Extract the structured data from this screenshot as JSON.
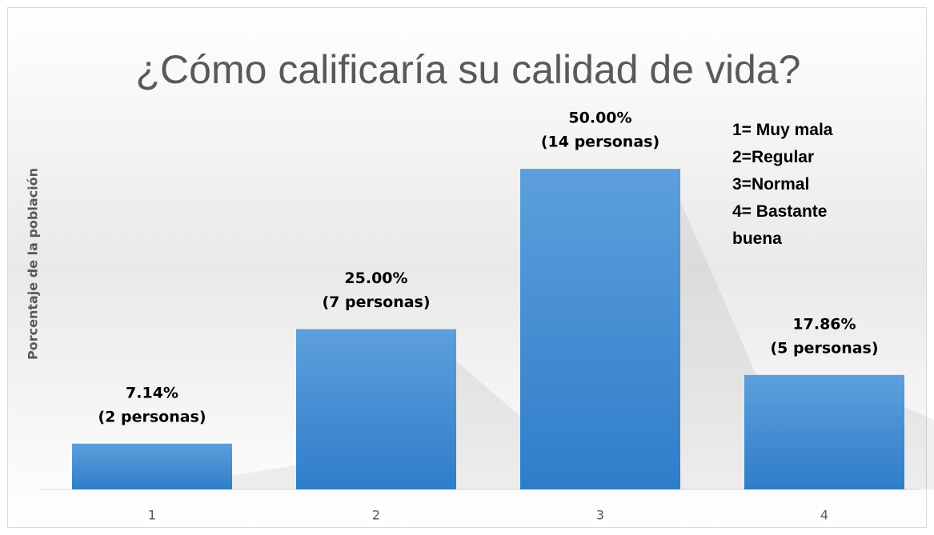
{
  "chart_data": {
    "type": "bar",
    "title": "¿Cómo calificaría su calidad de vida?",
    "y_label": "Porcentaje de la población",
    "categories": [
      "1",
      "2",
      "3",
      "4"
    ],
    "values": [
      7.14,
      25.0,
      50.0,
      17.86
    ],
    "value_labels": [
      "7.14%",
      "25.00%",
      "50.00%",
      "17.86%"
    ],
    "count_labels": [
      "(2 personas)",
      "(7 personas)",
      "(14 personas)",
      "(5 personas)"
    ],
    "color": "#4a8fd4",
    "ylim": [
      0,
      60
    ],
    "grid": false,
    "annotations": [
      "1= Muy mala",
      "2=Regular",
      "3=Normal",
      "4= Bastante buena"
    ]
  }
}
